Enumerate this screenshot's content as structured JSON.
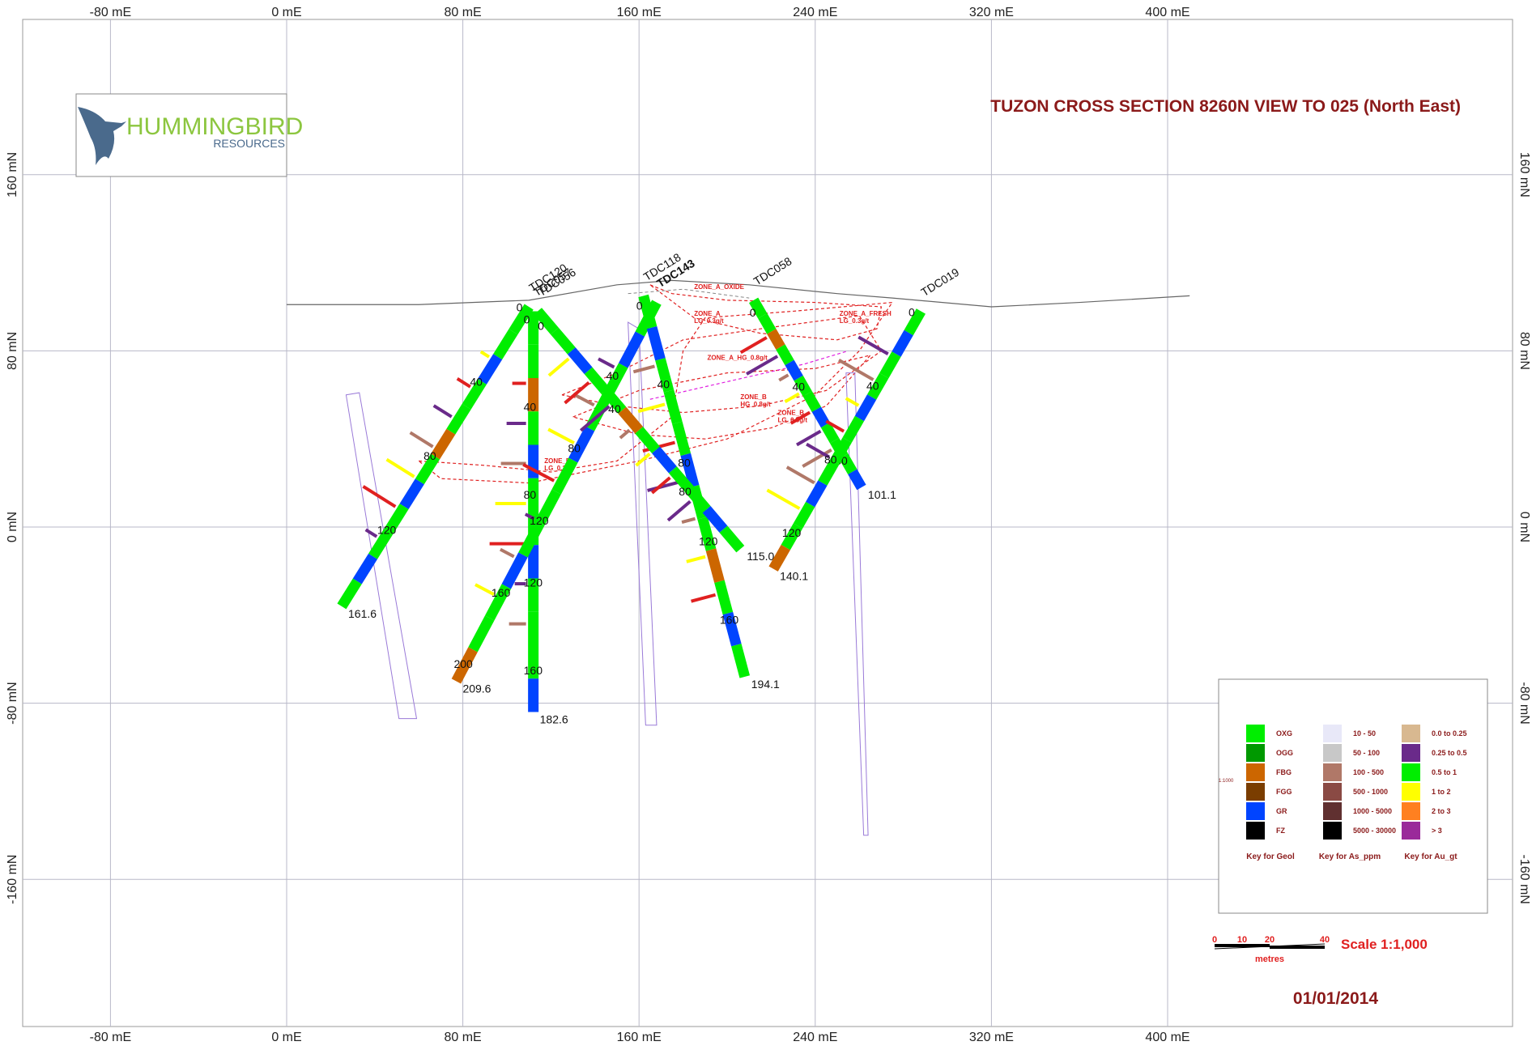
{
  "title": "TUZON CROSS SECTION 8260N VIEW TO 025 (North East)",
  "date": "01/01/2014",
  "logo": {
    "name": "HUMMINGBIRD",
    "sub": "RESOURCES"
  },
  "grid": {
    "x_labels": [
      "-80 mE",
      "0 mE",
      "80 mE",
      "160 mE",
      "240 mE",
      "320 mE",
      "400 mE"
    ],
    "y_labels": [
      "160 mN",
      "80 mN",
      "0 mN",
      "-80 mN",
      "-160 mN"
    ]
  },
  "scale": {
    "label": "Scale 1:1,000",
    "ticks": [
      "0",
      "10",
      "20",
      "40"
    ],
    "unit": "metres"
  },
  "drillholes": [
    {
      "id": "TDC120",
      "collar": [
        110,
        100
      ],
      "toe": [
        25,
        -36
      ],
      "end_depth": "161.6",
      "depth_ticks": [
        "0",
        "40",
        "80",
        "120"
      ]
    },
    {
      "id": "TDC057",
      "collar": [
        112,
        98
      ],
      "toe": [
        112,
        -84
      ],
      "end_depth": "182.6",
      "depth_ticks": [
        "0",
        "40",
        "80",
        "120",
        "160"
      ]
    },
    {
      "id": "TDC143",
      "collar": [
        168,
        102
      ],
      "toe": [
        77,
        -70
      ],
      "end_depth": "209.6",
      "depth_ticks": [
        "0",
        "40",
        "80",
        "120",
        "160",
        "200"
      ]
    },
    {
      "id": "TDC118",
      "collar": [
        162,
        105
      ],
      "toe": [
        208,
        -68
      ],
      "end_depth": "194.1",
      "depth_ticks": [
        "0",
        "40",
        "80",
        "120",
        "160"
      ]
    },
    {
      "id": "TDC056",
      "collar": [
        114,
        98
      ],
      "toe": [
        206,
        -10
      ],
      "end_depth": "115.0",
      "depth_ticks": [
        "0",
        "40",
        "80"
      ]
    },
    {
      "id": "TDC058",
      "collar": [
        212,
        103
      ],
      "toe": [
        261,
        18
      ],
      "end_depth": "101.1",
      "depth_ticks": [
        "0",
        "40",
        "80"
      ]
    },
    {
      "id": "TDC019",
      "collar": [
        288,
        98
      ],
      "toe": [
        221,
        -19
      ],
      "end_depth": "140.1",
      "depth_ticks": [
        "0",
        "40",
        "80",
        "120"
      ]
    }
  ],
  "zones": [
    {
      "label": "ZONE_A_OXIDE",
      "color": "#888888"
    },
    {
      "label": "ZONE_A",
      "sub": "LG_0.3g/t",
      "color": "#e02020"
    },
    {
      "label": "ZONE_A_FRESH",
      "sub": "LG_0.3g/t",
      "color": "#e02020"
    },
    {
      "label": "ZONE_A_HG_0.8g/t",
      "color": "#e02020"
    },
    {
      "label": "ZONE_B",
      "sub": "HG_0.8g/t",
      "color": "#e020e0"
    },
    {
      "label": "ZONE_B",
      "sub": "LG_0.3g/t",
      "color": "#e02020"
    },
    {
      "label": "ZONE_B",
      "sub": "LG_0.3g/t",
      "color": "#e02020"
    }
  ],
  "legend": {
    "small_note": "1:1000",
    "geol": {
      "caption": "Key for Geol",
      "items": [
        {
          "label": "OXG",
          "color": "#00ee00"
        },
        {
          "label": "OGG",
          "color": "#009900"
        },
        {
          "label": "FBG",
          "color": "#cc6600"
        },
        {
          "label": "FGG",
          "color": "#7a3d00"
        },
        {
          "label": "GR",
          "color": "#0044ff"
        },
        {
          "label": "FZ",
          "color": "#000000"
        }
      ]
    },
    "as": {
      "caption": "Key for As_ppm",
      "items": [
        {
          "label": "10 - 50",
          "color": "#e8e8f8"
        },
        {
          "label": "50 - 100",
          "color": "#c8c8c8"
        },
        {
          "label": "100 - 500",
          "color": "#b07868"
        },
        {
          "label": "500 - 1000",
          "color": "#8a4a44"
        },
        {
          "label": "1000 - 5000",
          "color": "#603030"
        },
        {
          "label": "5000 - 30000",
          "color": "#000000"
        }
      ]
    },
    "au": {
      "caption": "Key for Au_gt",
      "items": [
        {
          "label": "0.0 to 0.25",
          "color": "#d8b890"
        },
        {
          "label": "0.25 to 0.5",
          "color": "#6a2a8a"
        },
        {
          "label": "0.5 to 1",
          "color": "#00ee00"
        },
        {
          "label": "1 to 2",
          "color": "#ffff00"
        },
        {
          "label": "2 to 3",
          "color": "#ff8020"
        },
        {
          "label": "> 3",
          "color": "#9a2a9a"
        }
      ]
    }
  }
}
